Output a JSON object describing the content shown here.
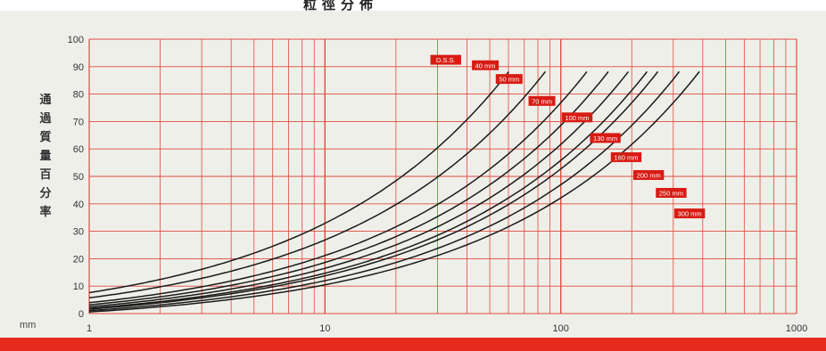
{
  "title": "粒徑分佈",
  "ylabel": "通過質量百分率",
  "unit": "mm",
  "colors": {
    "grid": "#e04a3c",
    "curve": "#1a1a1a",
    "label_bg": "#d81c14",
    "bar": "#e52a1e",
    "paper": "#efefea"
  },
  "chart_data": {
    "type": "line",
    "title": "粒徑分佈",
    "xlabel": "mm",
    "ylabel": "通過質量百分率",
    "x_scale": "log",
    "xlim": [
      1,
      1000
    ],
    "ylim": [
      0,
      100
    ],
    "x_ticks": [
      1,
      10,
      100,
      1000
    ],
    "y_ticks": [
      0,
      10,
      20,
      30,
      40,
      50,
      60,
      70,
      80,
      90,
      100
    ],
    "grid": true,
    "series": [
      {
        "name": "40 mm",
        "dmax": 70,
        "label_x": 42,
        "label_y": 90.5
      },
      {
        "name": "50 mm",
        "dmax": 100,
        "label_x": 53,
        "label_y": 85.5
      },
      {
        "name": "70 mm",
        "dmax": 150,
        "label_x": 73,
        "label_y": 77.5
      },
      {
        "name": "100 mm",
        "dmax": 185,
        "label_x": 101,
        "label_y": 71.5
      },
      {
        "name": "130 mm",
        "dmax": 225,
        "label_x": 133,
        "label_y": 64
      },
      {
        "name": "160 mm",
        "dmax": 270,
        "label_x": 163,
        "label_y": 57
      },
      {
        "name": "200 mm",
        "dmax": 300,
        "label_x": 203,
        "label_y": 50.5
      },
      {
        "name": "250 mm",
        "dmax": 370,
        "label_x": 253,
        "label_y": 44
      },
      {
        "name": "300 mm",
        "dmax": 450,
        "label_x": 303,
        "label_y": 36.5
      }
    ],
    "extra_label": {
      "text": "D.S.S.",
      "x": 28,
      "y": 92.5
    }
  }
}
